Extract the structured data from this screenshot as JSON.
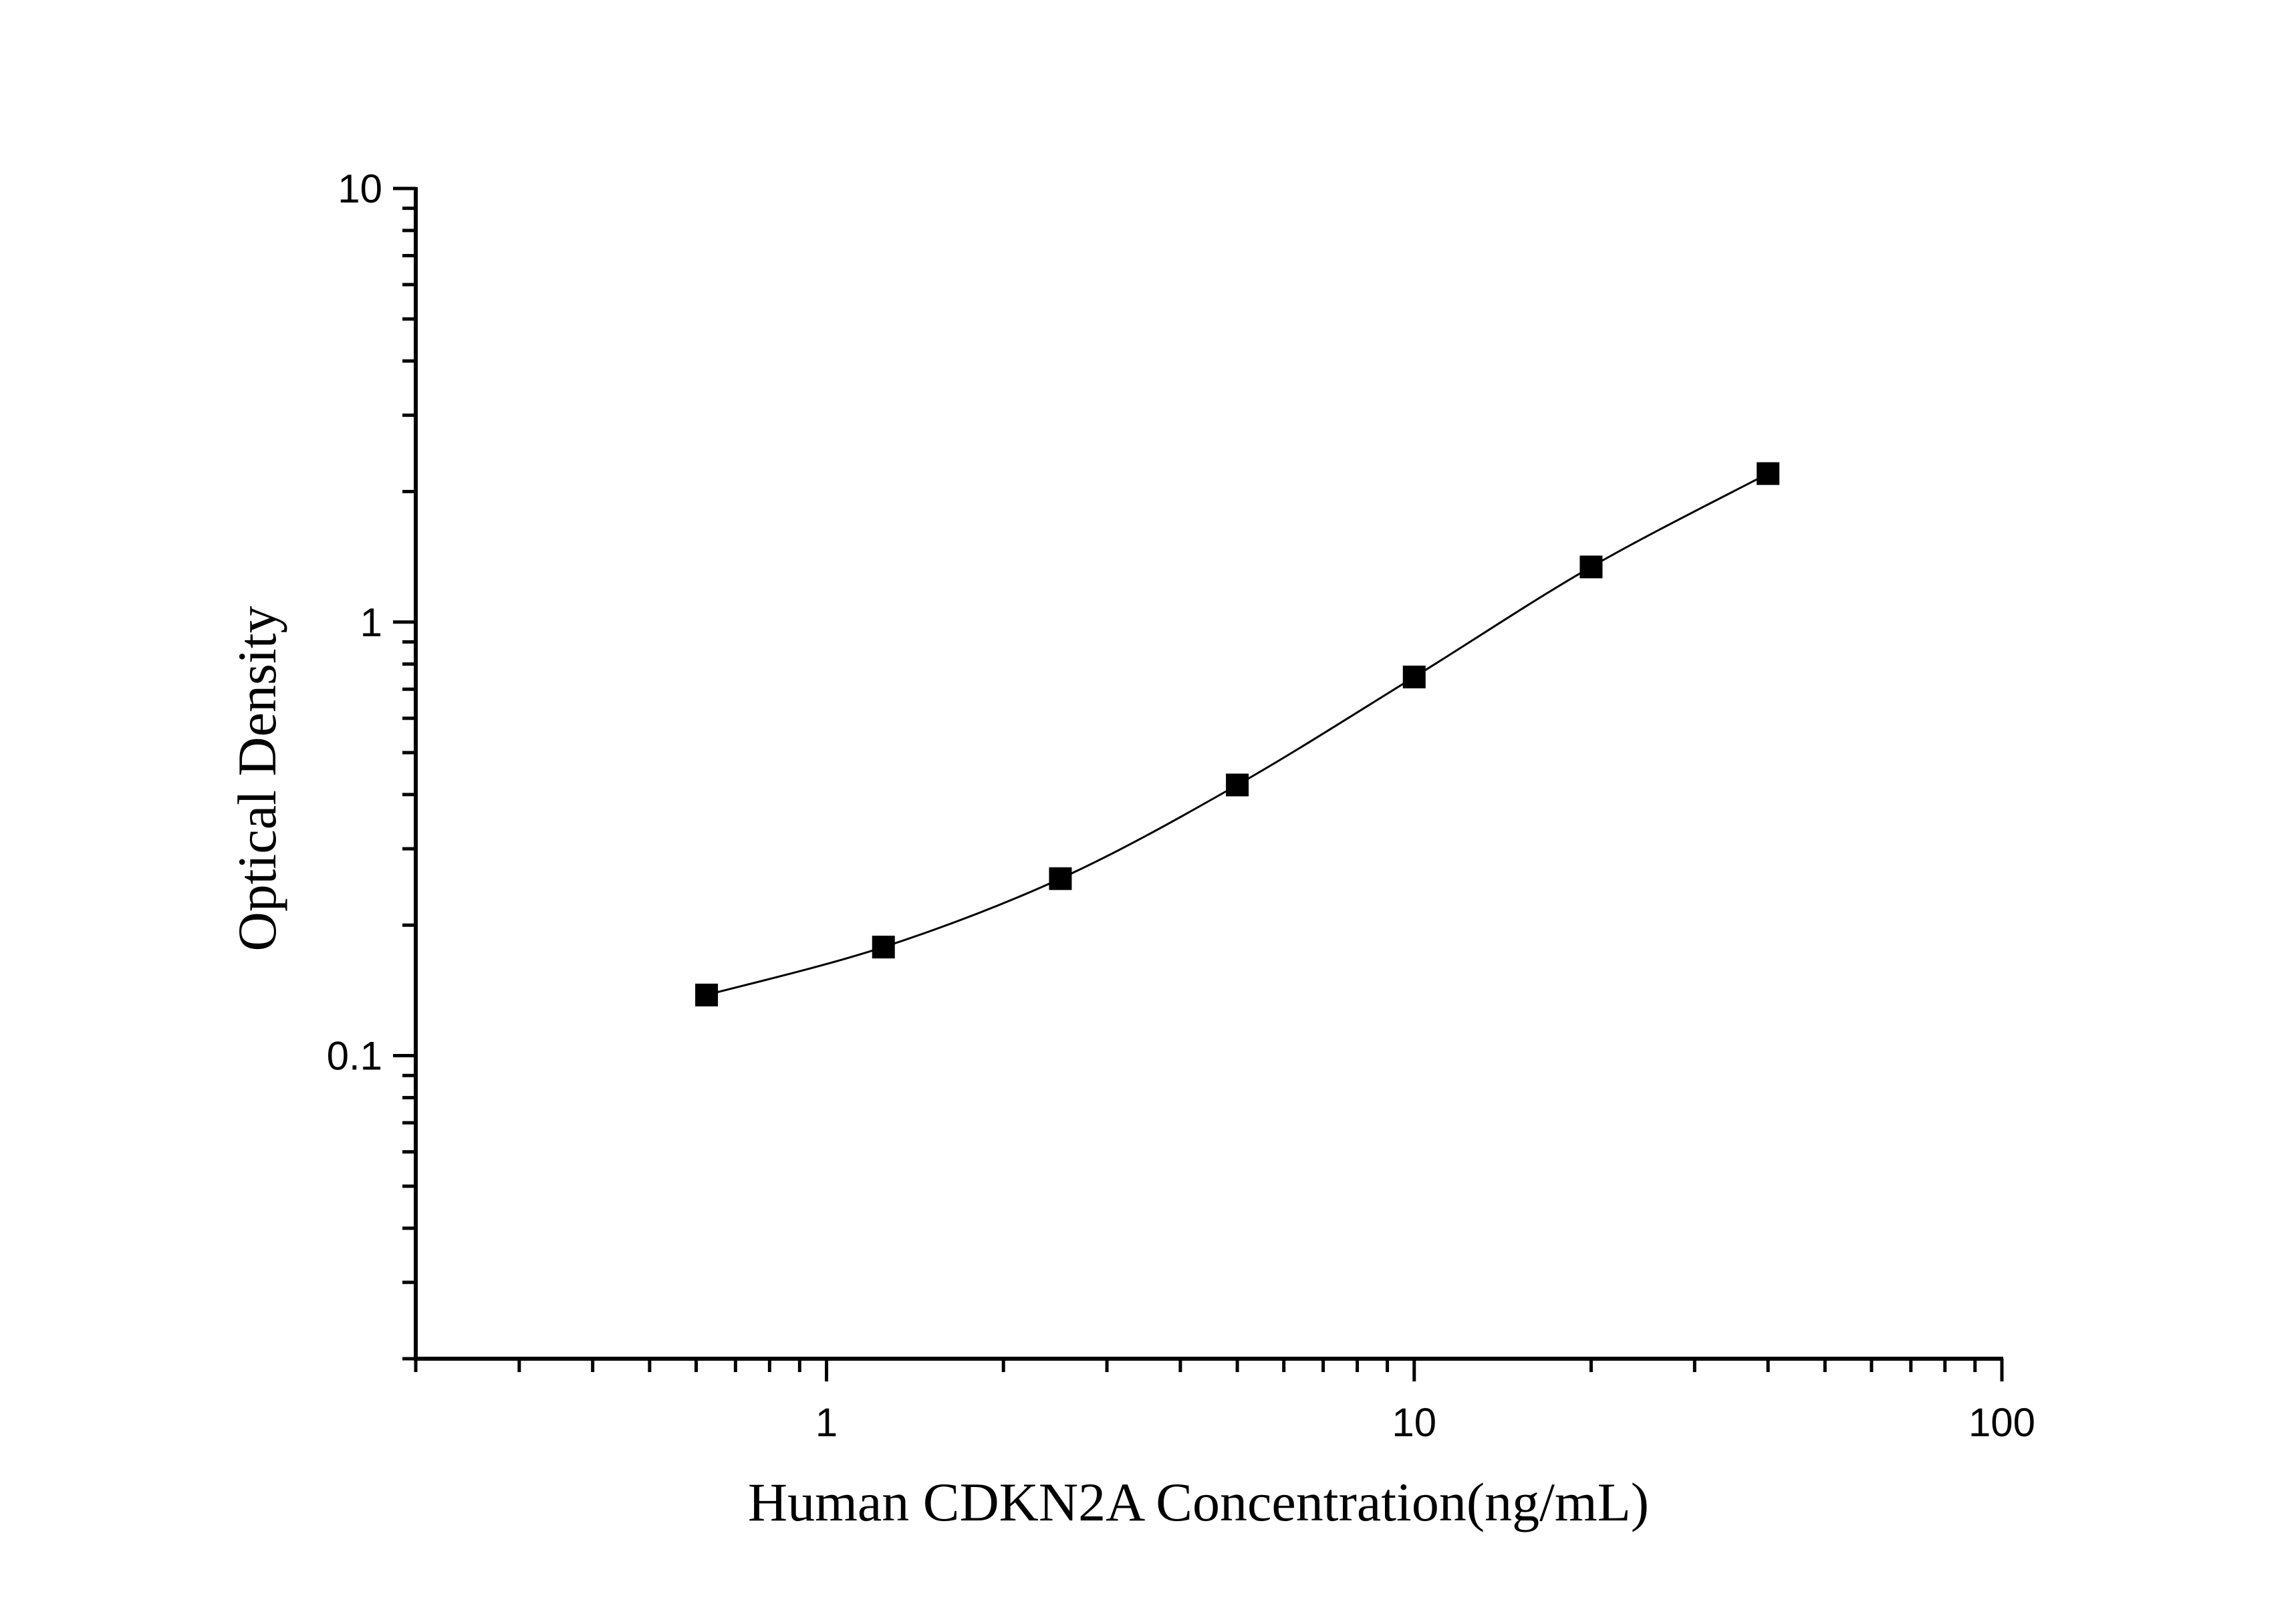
{
  "chart_data": {
    "type": "scatter",
    "title": "",
    "xlabel": "Human CDKN2A Concentration(ng/mL)",
    "ylabel": "Optical Density",
    "x_scale": "log",
    "y_scale": "log",
    "xlim": [
      0.2,
      100
    ],
    "ylim": [
      0.02,
      10
    ],
    "x_ticks": [
      {
        "value": 1,
        "label": "1"
      },
      {
        "value": 10,
        "label": "10"
      },
      {
        "value": 100,
        "label": "100"
      }
    ],
    "y_ticks": [
      {
        "value": 0.1,
        "label": "0.1"
      },
      {
        "value": 1,
        "label": "1"
      },
      {
        "value": 10,
        "label": "10"
      }
    ],
    "grid": false,
    "legend": "none",
    "series": [
      {
        "marker": "square",
        "color": "#000000",
        "fit_curve": true,
        "points": [
          {
            "x": 0.625,
            "y": 0.138
          },
          {
            "x": 1.25,
            "y": 0.178
          },
          {
            "x": 2.5,
            "y": 0.256
          },
          {
            "x": 5,
            "y": 0.421
          },
          {
            "x": 10,
            "y": 0.747
          },
          {
            "x": 20,
            "y": 1.34
          },
          {
            "x": 40,
            "y": 2.2
          }
        ]
      }
    ]
  }
}
